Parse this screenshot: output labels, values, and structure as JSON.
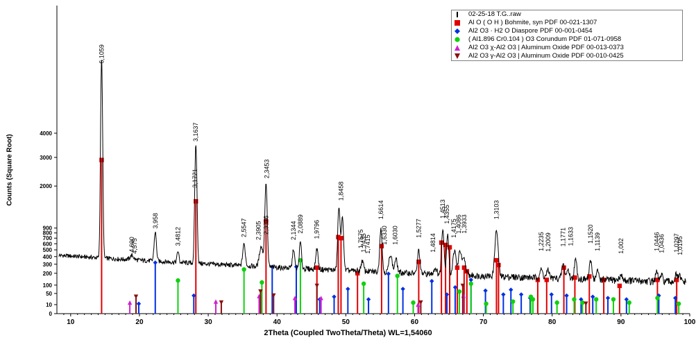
{
  "chart_data": {
    "type": "line",
    "xlabel": "2Theta (Coupled TwoTheta/Theta) WL=1,54060",
    "ylabel": "Counts (Square Root)",
    "xlim": [
      8,
      100
    ],
    "x_ticks": [
      "10",
      "20",
      "30",
      "40",
      "50",
      "60",
      "70",
      "80",
      "90",
      "100"
    ],
    "ysqrt_max": 108,
    "y_ticks": [
      {
        "label": "0",
        "v": 0
      },
      {
        "label": "10",
        "v": 10
      },
      {
        "label": "50",
        "v": 50
      },
      {
        "label": "100",
        "v": 100
      },
      {
        "label": "200",
        "v": 200
      },
      {
        "label": "300",
        "v": 300
      },
      {
        "label": "400",
        "v": 400
      },
      {
        "label": "500",
        "v": 500
      },
      {
        "label": "600",
        "v": 600
      },
      {
        "label": "700",
        "v": 700
      },
      {
        "label": "800",
        "v": 800
      },
      {
        "label": "900",
        "v": 900
      },
      {
        "label": "2000",
        "v": 2000
      },
      {
        "label": "3000",
        "v": 3000
      },
      {
        "label": "4000",
        "v": 4000
      }
    ],
    "background": 380,
    "measured_peaks": [
      {
        "x": 14.5,
        "y": 7600,
        "w": 0.18
      },
      {
        "x": 18.9,
        "y": 60,
        "w": 0.35
      },
      {
        "x": 22.3,
        "y": 480,
        "w": 0.22
      },
      {
        "x": 25.6,
        "y": 160,
        "w": 0.18
      },
      {
        "x": 28.2,
        "y": 3200,
        "w": 0.2
      },
      {
        "x": 35.2,
        "y": 310,
        "w": 0.25
      },
      {
        "x": 37.7,
        "y": 280,
        "w": 0.35
      },
      {
        "x": 38.4,
        "y": 1820,
        "w": 0.22
      },
      {
        "x": 42.4,
        "y": 260,
        "w": 0.2
      },
      {
        "x": 43.4,
        "y": 380,
        "w": 0.2
      },
      {
        "x": 45.8,
        "y": 280,
        "w": 0.22
      },
      {
        "x": 49.0,
        "y": 1150,
        "w": 0.22
      },
      {
        "x": 49.5,
        "y": 900,
        "w": 0.22
      },
      {
        "x": 52.4,
        "y": 120,
        "w": 0.25
      },
      {
        "x": 55.1,
        "y": 680,
        "w": 0.22
      },
      {
        "x": 56.5,
        "y": 220,
        "w": 0.3
      },
      {
        "x": 57.3,
        "y": 160,
        "w": 0.25
      },
      {
        "x": 60.6,
        "y": 300,
        "w": 0.22
      },
      {
        "x": 63.0,
        "y": 60,
        "w": 0.3
      },
      {
        "x": 64.1,
        "y": 700,
        "w": 0.22
      },
      {
        "x": 64.8,
        "y": 580,
        "w": 0.22
      },
      {
        "x": 65.8,
        "y": 300,
        "w": 0.3
      },
      {
        "x": 66.6,
        "y": 300,
        "w": 0.3
      },
      {
        "x": 67.2,
        "y": 180,
        "w": 0.3
      },
      {
        "x": 71.9,
        "y": 680,
        "w": 0.3
      },
      {
        "x": 78.4,
        "y": 80,
        "w": 0.3
      },
      {
        "x": 79.4,
        "y": 70,
        "w": 0.3
      },
      {
        "x": 81.6,
        "y": 150,
        "w": 0.25
      },
      {
        "x": 82.3,
        "y": 90,
        "w": 0.25
      },
      {
        "x": 83.4,
        "y": 210,
        "w": 0.25
      },
      {
        "x": 85.6,
        "y": 200,
        "w": 0.25
      },
      {
        "x": 86.6,
        "y": 80,
        "w": 0.25
      },
      {
        "x": 90.0,
        "y": 40,
        "w": 0.3
      },
      {
        "x": 95.2,
        "y": 80,
        "w": 0.25
      },
      {
        "x": 95.9,
        "y": 50,
        "w": 0.25
      },
      {
        "x": 98.0,
        "y": 60,
        "w": 0.25
      },
      {
        "x": 98.5,
        "y": 50,
        "w": 0.25
      }
    ],
    "peak_labels": [
      {
        "x": 14.5,
        "y": 7600,
        "text": "6,1059"
      },
      {
        "x": 18.9,
        "y": 440,
        "text": "4,690"
      },
      {
        "x": 19.3,
        "y": 420,
        "text": "4,575"
      },
      {
        "x": 22.3,
        "y": 860,
        "text": "3,958"
      },
      {
        "x": 25.6,
        "y": 540,
        "text": "3,4812"
      },
      {
        "x": 28.2,
        "y": 3580,
        "text": "3,1637"
      },
      {
        "x": 28.1,
        "y": 1900,
        "text": "3,1721"
      },
      {
        "x": 35.2,
        "y": 690,
        "text": "2,5547"
      },
      {
        "x": 37.3,
        "y": 640,
        "text": "2,3905"
      },
      {
        "x": 38.4,
        "y": 740,
        "text": "2,3336"
      },
      {
        "x": 38.5,
        "y": 2200,
        "text": "2,3453"
      },
      {
        "x": 42.4,
        "y": 640,
        "text": "2,1344"
      },
      {
        "x": 43.4,
        "y": 760,
        "text": "2,0889"
      },
      {
        "x": 45.8,
        "y": 660,
        "text": "1,9796"
      },
      {
        "x": 49.3,
        "y": 1530,
        "text": "1,8458"
      },
      {
        "x": 52.2,
        "y": 500,
        "text": "1,7575"
      },
      {
        "x": 52.6,
        "y": 440,
        "text": "1,7435"
      },
      {
        "x": 53.2,
        "y": 420,
        "text": "1,7415"
      },
      {
        "x": 55.1,
        "y": 1060,
        "text": "1,6614"
      },
      {
        "x": 55.6,
        "y": 560,
        "text": "1,6330"
      },
      {
        "x": 57.2,
        "y": 560,
        "text": "1,6030"
      },
      {
        "x": 60.6,
        "y": 680,
        "text": "1,5277"
      },
      {
        "x": 62.7,
        "y": 440,
        "text": "1,4814"
      },
      {
        "x": 64.1,
        "y": 1080,
        "text": "1,4513"
      },
      {
        "x": 64.7,
        "y": 960,
        "text": "1,4355"
      },
      {
        "x": 65.7,
        "y": 680,
        "text": "1,4175"
      },
      {
        "x": 66.4,
        "y": 760,
        "text": "1,4086"
      },
      {
        "x": 67.2,
        "y": 760,
        "text": "1,3933"
      },
      {
        "x": 71.9,
        "y": 1060,
        "text": "1,3103"
      },
      {
        "x": 78.4,
        "y": 460,
        "text": "1,2235"
      },
      {
        "x": 79.4,
        "y": 450,
        "text": "1,2009"
      },
      {
        "x": 81.6,
        "y": 530,
        "text": "1,1771"
      },
      {
        "x": 82.7,
        "y": 540,
        "text": "1,1633"
      },
      {
        "x": 85.6,
        "y": 580,
        "text": "1,1520"
      },
      {
        "x": 86.6,
        "y": 460,
        "text": "1,1139"
      },
      {
        "x": 90.0,
        "y": 420,
        "text": "1,002"
      },
      {
        "x": 95.2,
        "y": 460,
        "text": "1,0446"
      },
      {
        "x": 95.9,
        "y": 430,
        "text": "1,0436"
      },
      {
        "x": 98.1,
        "y": 440,
        "text": "1,0297"
      },
      {
        "x": 98.6,
        "y": 400,
        "text": "1,0195"
      }
    ],
    "series": [
      {
        "name": "02-25-18 T.G..raw",
        "color": "#000000",
        "marker": "bar"
      },
      {
        "name": "Al O ( O H ) Bohmite, syn PDF 00-021-1307",
        "color": "#e00000",
        "marker": "square",
        "sticks": [
          {
            "x": 14.5,
            "y": 2900
          },
          {
            "x": 28.2,
            "y": 1550
          },
          {
            "x": 38.4,
            "y": 1050
          },
          {
            "x": 45.8,
            "y": 260
          },
          {
            "x": 48.9,
            "y": 720
          },
          {
            "x": 49.3,
            "y": 700
          },
          {
            "x": 51.7,
            "y": 200
          },
          {
            "x": 55.2,
            "y": 560
          },
          {
            "x": 60.6,
            "y": 330
          },
          {
            "x": 63.9,
            "y": 620
          },
          {
            "x": 64.5,
            "y": 580
          },
          {
            "x": 65.1,
            "y": 540
          },
          {
            "x": 66.2,
            "y": 260
          },
          {
            "x": 67.2,
            "y": 260
          },
          {
            "x": 67.6,
            "y": 220
          },
          {
            "x": 71.9,
            "y": 350
          },
          {
            "x": 72.2,
            "y": 290
          },
          {
            "x": 77.9,
            "y": 140
          },
          {
            "x": 79.2,
            "y": 140
          },
          {
            "x": 81.7,
            "y": 260
          },
          {
            "x": 83.3,
            "y": 160
          },
          {
            "x": 85.4,
            "y": 170
          },
          {
            "x": 87.5,
            "y": 140
          },
          {
            "x": 89.8,
            "y": 95
          },
          {
            "x": 95.3,
            "y": 140
          },
          {
            "x": 98.1,
            "y": 140
          }
        ]
      },
      {
        "name": "Al2 O3 · H2 O Diaspore PDF 00-001-0454",
        "color": "#0030e0",
        "marker": "diamond",
        "sticks": [
          {
            "x": 19.9,
            "y": 12
          },
          {
            "x": 22.3,
            "y": 320
          },
          {
            "x": 27.9,
            "y": 40
          },
          {
            "x": 39.3,
            "y": 270
          },
          {
            "x": 42.8,
            "y": 270
          },
          {
            "x": 46.2,
            "y": 25
          },
          {
            "x": 48.3,
            "y": 35
          },
          {
            "x": 50.3,
            "y": 75
          },
          {
            "x": 53.3,
            "y": 25
          },
          {
            "x": 56.2,
            "y": 195
          },
          {
            "x": 58.3,
            "y": 75
          },
          {
            "x": 62.5,
            "y": 130
          },
          {
            "x": 64.7,
            "y": 45
          },
          {
            "x": 65.9,
            "y": 85
          },
          {
            "x": 68.2,
            "y": 140
          },
          {
            "x": 70.3,
            "y": 65
          },
          {
            "x": 72.9,
            "y": 45
          },
          {
            "x": 74.0,
            "y": 70
          },
          {
            "x": 75.5,
            "y": 45
          },
          {
            "x": 76.8,
            "y": 30
          },
          {
            "x": 79.9,
            "y": 45
          },
          {
            "x": 82.1,
            "y": 40
          },
          {
            "x": 84.2,
            "y": 25
          },
          {
            "x": 85.9,
            "y": 35
          },
          {
            "x": 88.1,
            "y": 30
          },
          {
            "x": 90.8,
            "y": 25
          },
          {
            "x": 95.5,
            "y": 40
          },
          {
            "x": 97.9,
            "y": 30
          }
        ]
      },
      {
        "name": "( Al1.896 Cr0.104 ) O3 Corundum PDF 01-071-0958",
        "color": "#10d010",
        "marker": "circle",
        "sticks": [
          {
            "x": 25.6,
            "y": 135
          },
          {
            "x": 35.2,
            "y": 240
          },
          {
            "x": 37.8,
            "y": 120
          },
          {
            "x": 43.4,
            "y": 350
          },
          {
            "x": 52.6,
            "y": 110
          },
          {
            "x": 57.5,
            "y": 175
          },
          {
            "x": 59.8,
            "y": 15
          },
          {
            "x": 66.5,
            "y": 60
          },
          {
            "x": 68.2,
            "y": 110
          },
          {
            "x": 70.4,
            "y": 12
          },
          {
            "x": 74.3,
            "y": 18
          },
          {
            "x": 76.9,
            "y": 35
          },
          {
            "x": 77.2,
            "y": 25
          },
          {
            "x": 80.7,
            "y": 15
          },
          {
            "x": 83.2,
            "y": 25
          },
          {
            "x": 84.4,
            "y": 15
          },
          {
            "x": 86.4,
            "y": 25
          },
          {
            "x": 88.9,
            "y": 25
          },
          {
            "x": 91.2,
            "y": 15
          },
          {
            "x": 95.3,
            "y": 30
          },
          {
            "x": 98.4,
            "y": 12
          }
        ]
      },
      {
        "name": "Al2 O3 χ-Al2 O3 | Aluminum Oxide PDF 00-013-0373",
        "color": "#d020d0",
        "marker": "triangle-up",
        "sticks": [
          {
            "x": 18.6,
            "y": 15
          },
          {
            "x": 31.1,
            "y": 18
          },
          {
            "x": 37.4,
            "y": 38
          },
          {
            "x": 42.6,
            "y": 30
          },
          {
            "x": 46.4,
            "y": 30
          },
          {
            "x": 60.5,
            "y": 10
          },
          {
            "x": 67.1,
            "y": 40
          }
        ]
      },
      {
        "name": "Al2 O3 γ-Al2 O3 | Aluminum Oxide PDF 00-010-0425",
        "color": "#8b1010",
        "marker": "triangle-down",
        "sticks": [
          {
            "x": 19.5,
            "y": 35
          },
          {
            "x": 31.9,
            "y": 15
          },
          {
            "x": 37.6,
            "y": 60
          },
          {
            "x": 39.5,
            "y": 40
          },
          {
            "x": 45.8,
            "y": 95
          },
          {
            "x": 60.9,
            "y": 15
          },
          {
            "x": 67.0,
            "y": 95
          },
          {
            "x": 84.9,
            "y": 12
          }
        ]
      }
    ]
  }
}
